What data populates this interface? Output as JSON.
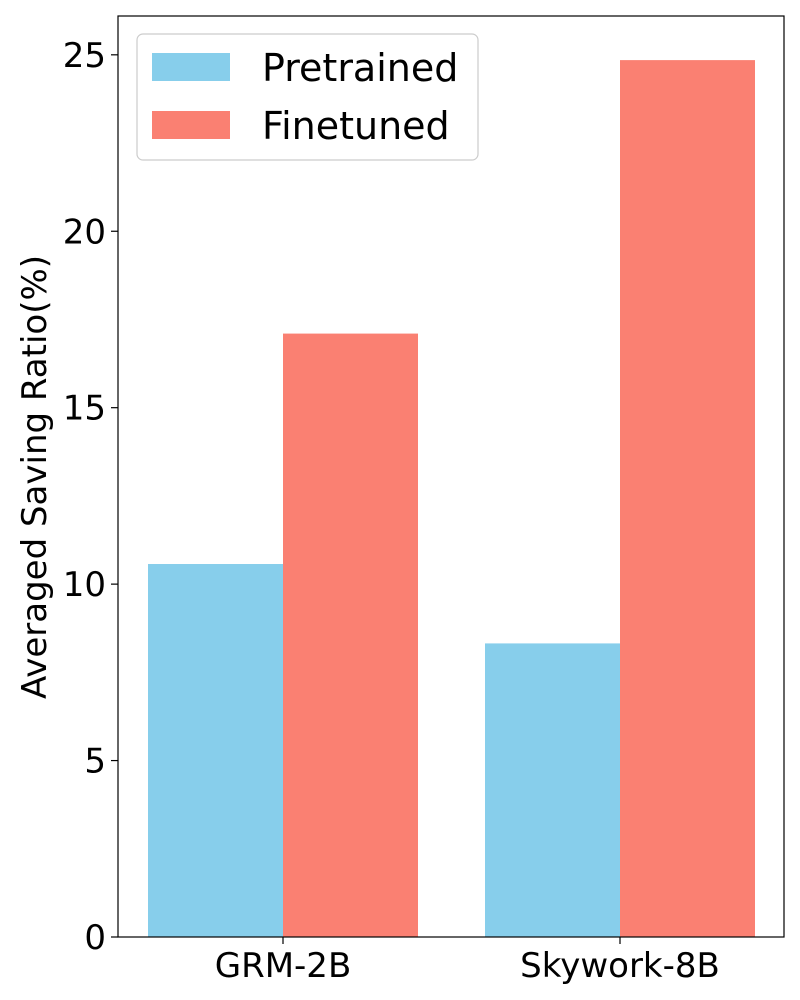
{
  "chart_data": {
    "type": "bar",
    "categories": [
      "GRM-2B",
      "Skywork-8B"
    ],
    "series": [
      {
        "name": "Pretrained",
        "values": [
          10.57,
          8.32
        ],
        "color": "#87CEEB"
      },
      {
        "name": "Finetuned",
        "values": [
          17.1,
          24.85
        ],
        "color": "#FA8072"
      }
    ],
    "title": "",
    "xlabel": "",
    "ylabel": "Averaged Saving Ratio(%)",
    "ylim": [
      0,
      26.1
    ],
    "yticks": [
      0,
      5,
      10,
      15,
      20,
      25
    ],
    "grid": false,
    "legend_position": "top-left"
  }
}
